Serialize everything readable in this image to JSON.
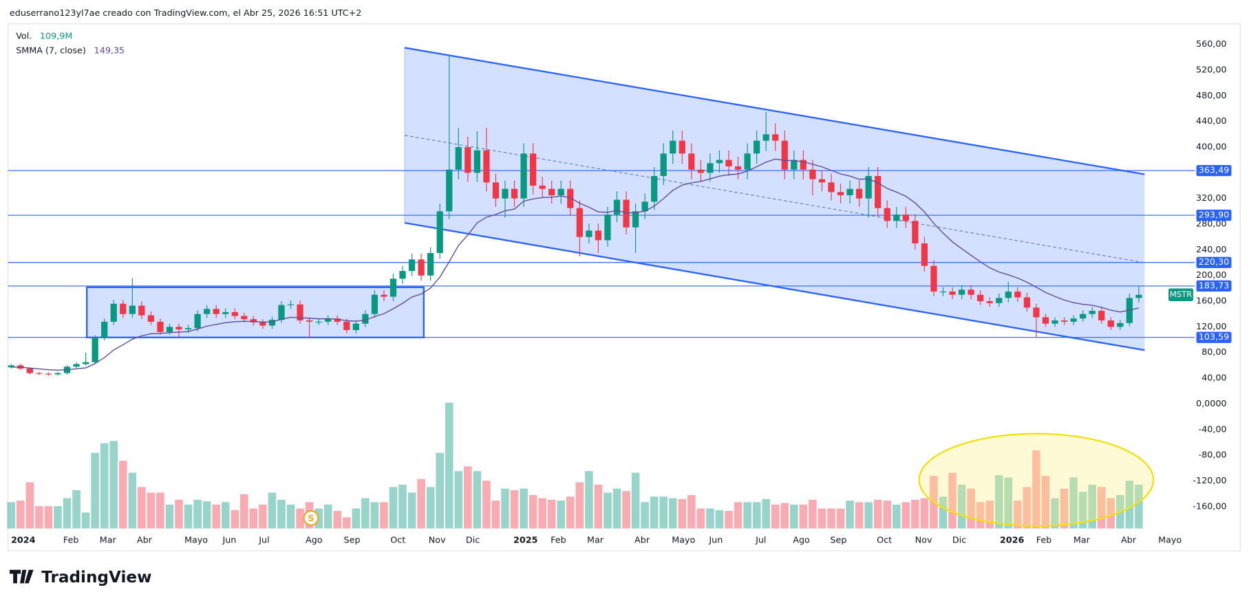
{
  "chart_data": {
    "type": "candlestick",
    "header": "eduserrano123yl7ae creado con TradingView.com, el Abr 25, 2026 16:51 UTC+2",
    "legend": {
      "volume_name": "Vol.",
      "volume_label": "109,9M",
      "indicator_name": "SMMA (7, close)",
      "indicator_label": "149,35"
    },
    "symbol": "MSTR",
    "brand": "TradingView",
    "up_color": "#089981",
    "down_color": "#f23645",
    "smma_color": "#5e4b9c",
    "hline_color": "#2962ff",
    "open": [
      57,
      60,
      55,
      48,
      47,
      46,
      48,
      58,
      62,
      65,
      103,
      128,
      156,
      140,
      153,
      138,
      128,
      112,
      120,
      116,
      118,
      140,
      148,
      140,
      143,
      137,
      132,
      127,
      122,
      131,
      154,
      155,
      130,
      128,
      128,
      133,
      128,
      115,
      125,
      140,
      170,
      167,
      195,
      207,
      225,
      200,
      235,
      300,
      365,
      400,
      360,
      395,
      345,
      320,
      335,
      320,
      390,
      340,
      335,
      325,
      335,
      305,
      260,
      270,
      255,
      295,
      318,
      275,
      300,
      315,
      355,
      390,
      410,
      390,
      365,
      360,
      375,
      380,
      370,
      365,
      390,
      410,
      420,
      410,
      365,
      380,
      365,
      350,
      345,
      330,
      325,
      335,
      320,
      355,
      305,
      285,
      295,
      285,
      250,
      215,
      175,
      175,
      170,
      178,
      170,
      160,
      157,
      165,
      175,
      166,
      150,
      135,
      125,
      130,
      128,
      133,
      140,
      145,
      130,
      120,
      126,
      165
    ],
    "high": [
      62,
      63,
      57,
      50,
      49,
      50,
      60,
      65,
      80,
      107,
      133,
      162,
      162,
      196,
      160,
      144,
      133,
      125,
      125,
      123,
      146,
      154,
      154,
      149,
      149,
      142,
      137,
      132,
      136,
      160,
      161,
      161,
      135,
      133,
      138,
      138,
      133,
      130,
      146,
      177,
      177,
      203,
      215,
      234,
      234,
      244,
      312,
      543,
      430,
      416,
      425,
      430,
      359,
      348,
      348,
      406,
      406,
      354,
      348,
      348,
      348,
      317,
      281,
      281,
      307,
      331,
      331,
      312,
      328,
      369,
      406,
      426,
      426,
      406,
      380,
      390,
      395,
      395,
      385,
      406,
      426,
      455,
      437,
      426,
      395,
      395,
      380,
      364,
      359,
      343,
      348,
      348,
      369,
      369,
      317,
      307,
      307,
      296,
      260,
      224,
      182,
      182,
      185,
      185,
      177,
      166,
      172,
      190,
      182,
      173,
      156,
      140,
      135,
      135,
      138,
      146,
      151,
      151,
      135,
      131,
      172,
      183
    ],
    "low": [
      55,
      53,
      46,
      45,
      44,
      44,
      46,
      56,
      60,
      62,
      99,
      123,
      134,
      134,
      132,
      123,
      108,
      108,
      104,
      111,
      113,
      134,
      134,
      134,
      132,
      127,
      122,
      117,
      117,
      126,
      148,
      125,
      103,
      123,
      123,
      123,
      110,
      110,
      120,
      134,
      160,
      160,
      187,
      199,
      192,
      192,
      226,
      288,
      350,
      346,
      346,
      331,
      307,
      290,
      307,
      307,
      326,
      322,
      312,
      312,
      293,
      230,
      250,
      235,
      245,
      283,
      264,
      235,
      288,
      302,
      341,
      374,
      374,
      350,
      346,
      346,
      360,
      355,
      350,
      350,
      374,
      394,
      394,
      350,
      350,
      350,
      325,
      331,
      317,
      312,
      312,
      307,
      290,
      293,
      274,
      274,
      274,
      240,
      206,
      168,
      168,
      163,
      163,
      163,
      154,
      151,
      151,
      158,
      159,
      144,
      104,
      120,
      120,
      123,
      123,
      128,
      134,
      125,
      115,
      115,
      121,
      158
    ],
    "close": [
      60,
      55,
      48,
      47,
      46,
      48,
      58,
      62,
      65,
      103,
      128,
      156,
      140,
      153,
      138,
      128,
      112,
      120,
      116,
      118,
      140,
      148,
      140,
      143,
      137,
      132,
      127,
      122,
      131,
      154,
      155,
      130,
      128,
      128,
      133,
      128,
      115,
      125,
      140,
      170,
      167,
      195,
      207,
      225,
      200,
      235,
      300,
      365,
      400,
      360,
      395,
      345,
      320,
      335,
      320,
      390,
      340,
      335,
      325,
      335,
      305,
      260,
      270,
      255,
      295,
      318,
      275,
      300,
      315,
      355,
      390,
      410,
      390,
      365,
      360,
      375,
      380,
      370,
      365,
      390,
      410,
      420,
      410,
      365,
      380,
      365,
      350,
      345,
      330,
      325,
      335,
      320,
      355,
      305,
      285,
      295,
      285,
      250,
      215,
      175,
      175,
      170,
      178,
      170,
      160,
      157,
      165,
      175,
      166,
      150,
      135,
      125,
      130,
      128,
      133,
      140,
      145,
      130,
      120,
      126,
      165,
      170
    ],
    "volume": [
      66,
      70,
      116,
      56,
      56,
      56,
      76,
      96,
      40,
      190,
      214,
      220,
      170,
      140,
      104,
      90,
      90,
      60,
      72,
      60,
      72,
      68,
      60,
      66,
      46,
      86,
      50,
      60,
      90,
      72,
      60,
      50,
      66,
      50,
      60,
      44,
      28,
      50,
      76,
      66,
      66,
      104,
      110,
      90,
      124,
      104,
      190,
      316,
      144,
      156,
      144,
      120,
      70,
      100,
      96,
      100,
      84,
      76,
      72,
      70,
      80,
      116,
      144,
      110,
      90,
      100,
      94,
      140,
      66,
      80,
      80,
      76,
      74,
      84,
      50,
      50,
      46,
      44,
      66,
      66,
      66,
      74,
      60,
      64,
      60,
      60,
      72,
      50,
      50,
      50,
      70,
      66,
      66,
      72,
      70,
      60,
      66,
      72,
      76,
      132,
      80,
      140,
      110,
      100,
      66,
      70,
      134,
      128,
      70,
      104,
      196,
      132,
      76,
      100,
      128,
      92,
      110,
      104,
      76,
      84,
      120,
      109.9
    ],
    "smma": [
      57.4,
      57.1,
      55.8,
      54.5,
      53.3,
      52.6,
      53.3,
      54.6,
      56.1,
      62.8,
      72.1,
      84.1,
      92.1,
      100.8,
      106.1,
      109.2,
      109.6,
      111.1,
      111.8,
      112.7,
      116.6,
      121.1,
      123.8,
      126.5,
      128.0,
      128.6,
      128.4,
      127.5,
      128.0,
      131.7,
      135.0,
      134.3,
      133.4,
      132.6,
      132.7,
      132.0,
      129.6,
      128.9,
      130.5,
      136.1,
      140.5,
      148.3,
      156.7,
      166.5,
      171.3,
      180.4,
      197.5,
      221.4,
      246.9,
      263.1,
      281.9,
      290.9,
      295.1,
      300.8,
      303.5,
      315.9,
      319.3,
      321.5,
      322.0,
      323.9,
      321.2,
      312.5,
      306.4,
      299.1,
      298.5,
      301.3,
      297.5,
      297.9,
      300.3,
      308.1,
      319.8,
      332.7,
      340.9,
      344.3,
      346.6,
      350.6,
      354.8,
      357.0,
      358.1,
      362.7,
      369.4,
      376.6,
      381.4,
      379.1,
      379.2,
      377.2,
      373.3,
      369.3,
      363.7,
      358.2,
      354.9,
      349.9,
      350.6,
      344.1,
      335.7,
      329.9,
      323.5,
      313.0,
      299.0,
      281.3,
      266.1,
      252.4,
      241.8,
      231.5,
      221.3,
      212.1,
      205.4,
      201.1,
      196.1,
      189.5,
      181.7,
      173.6,
      167.4,
      161.8,
      157.7,
      155.2,
      153.7,
      150.3,
      146.0,
      143.1,
      146.2,
      149.35
    ],
    "hlines": [
      {
        "value": 363.49,
        "label": "363,49"
      },
      {
        "value": 293.9,
        "label": "293,90"
      },
      {
        "value": 220.3,
        "label": "220,30"
      },
      {
        "value": 183.73,
        "label": "183,73"
      },
      {
        "value": 103.59,
        "label": "103,59"
      }
    ],
    "ylim": [
      -194,
      592
    ],
    "yticks": [
      {
        "value": 560,
        "label": "560,00"
      },
      {
        "value": 520,
        "label": "520,00"
      },
      {
        "value": 480,
        "label": "480,00"
      },
      {
        "value": 440,
        "label": "440,00"
      },
      {
        "value": 400,
        "label": "400,00"
      },
      {
        "value": 360,
        "label": "360,00"
      },
      {
        "value": 320,
        "label": "320,00"
      },
      {
        "value": 280,
        "label": "280,00"
      },
      {
        "value": 240,
        "label": "240,00"
      },
      {
        "value": 200,
        "label": "200,00"
      },
      {
        "value": 160,
        "label": "160,00"
      },
      {
        "value": 120,
        "label": "120,00"
      },
      {
        "value": 80,
        "label": "80,00"
      },
      {
        "value": 40,
        "label": "40,00"
      },
      {
        "value": 0,
        "label": "0,0000"
      },
      {
        "value": -40,
        "label": "-40,00"
      },
      {
        "value": -80,
        "label": "-80,00"
      },
      {
        "value": -120,
        "label": "-120,00"
      },
      {
        "value": -160,
        "label": "-160,00"
      }
    ],
    "xticks": [
      {
        "value": 0.5,
        "label": "2024"
      },
      {
        "value": 6.1,
        "label": "Feb"
      },
      {
        "value": 10,
        "label": "Mar"
      },
      {
        "value": 14,
        "label": "Abr"
      },
      {
        "value": 19.1,
        "label": "Mayo"
      },
      {
        "value": 23.2,
        "label": "Jun"
      },
      {
        "value": 27.1,
        "label": "Jul"
      },
      {
        "value": 32.1,
        "label": "Ago"
      },
      {
        "value": 36.2,
        "label": "Sep"
      },
      {
        "value": 41.2,
        "label": "Oct"
      },
      {
        "value": 45.3,
        "label": "Nov"
      },
      {
        "value": 49.3,
        "label": "Dic"
      },
      {
        "value": 54.4,
        "label": "2025"
      },
      {
        "value": 58.4,
        "label": "Feb"
      },
      {
        "value": 62.3,
        "label": "Mar"
      },
      {
        "value": 67.4,
        "label": "Abr"
      },
      {
        "value": 71.4,
        "label": "Mayo"
      },
      {
        "value": 75.4,
        "label": "Jun"
      },
      {
        "value": 80.4,
        "label": "Jul"
      },
      {
        "value": 84.4,
        "label": "Ago"
      },
      {
        "value": 88.4,
        "label": "Sep"
      },
      {
        "value": 93.4,
        "label": "Oct"
      },
      {
        "value": 97.5,
        "label": "Nov"
      },
      {
        "value": 101.5,
        "label": "Dic"
      },
      {
        "value": 106.6,
        "label": "2026"
      },
      {
        "value": 110.5,
        "label": "Feb"
      },
      {
        "value": 114.5,
        "label": "Mar"
      },
      {
        "value": 119.6,
        "label": "Abr"
      },
      {
        "value": 123.6,
        "label": "Mayo"
      }
    ],
    "event": {
      "label": "S",
      "index": 32
    }
  }
}
